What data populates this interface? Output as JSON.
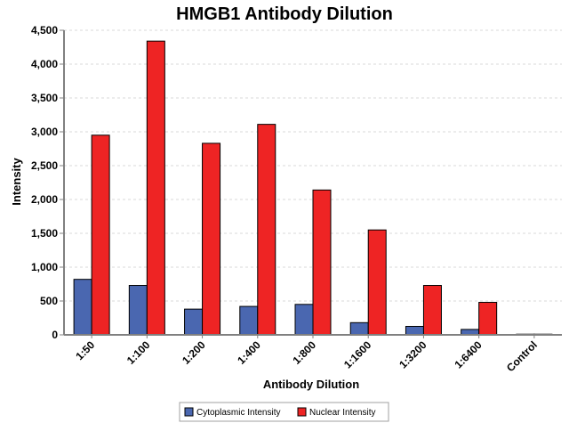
{
  "chart_data": {
    "type": "bar",
    "title": "HMGB1 Antibody Dilution",
    "xlabel": "Antibody Dilution",
    "ylabel": "Intensity",
    "ylim": [
      0,
      4500
    ],
    "yticks": [
      0,
      500,
      1000,
      1500,
      2000,
      2500,
      3000,
      3500,
      4000,
      4500
    ],
    "ytick_labels": [
      "0",
      "500",
      "1,000",
      "1,500",
      "2,000",
      "2,500",
      "3,000",
      "3,500",
      "4,000",
      "4,500"
    ],
    "grid": true,
    "legend_position": "bottom",
    "categories": [
      "1:50",
      "1:100",
      "1:200",
      "1:400",
      "1:800",
      "1:1600",
      "1:3200",
      "1:6400",
      "Control"
    ],
    "series": [
      {
        "name": "Cytoplasmic Intensity",
        "color": "#4a67b0",
        "values": [
          820,
          730,
          380,
          420,
          450,
          180,
          125,
          80,
          10
        ]
      },
      {
        "name": "Nuclear Intensity",
        "color": "#ee2424",
        "values": [
          2950,
          4340,
          2830,
          3110,
          2140,
          1550,
          730,
          480,
          10
        ]
      }
    ]
  }
}
